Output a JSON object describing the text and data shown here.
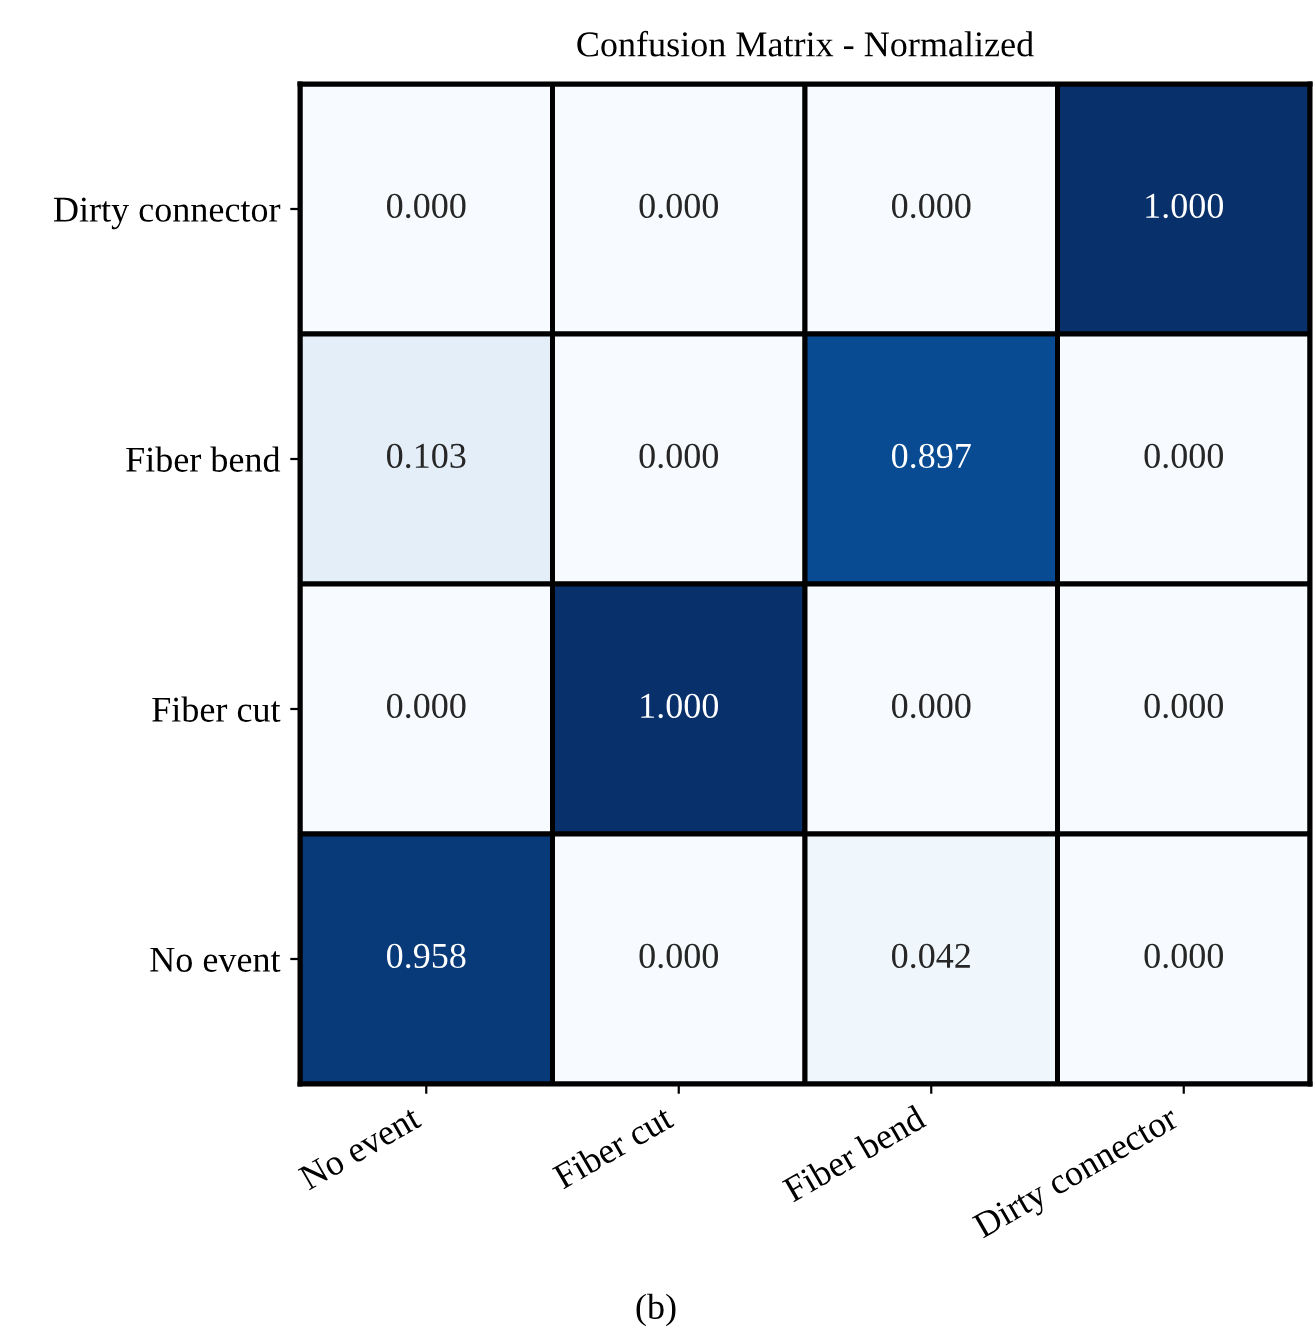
{
  "chart_data": {
    "type": "heatmap",
    "title": "Confusion Matrix - Normalized",
    "categories": [
      "No event",
      "Fiber cut",
      "Fiber bend",
      "Dirty connector"
    ],
    "y_categories": [
      "Dirty connector",
      "Fiber bend",
      "Fiber cut",
      "No event"
    ],
    "cells": [
      [
        0.0,
        0.0,
        0.0,
        1.0
      ],
      [
        0.103,
        0.0,
        0.897,
        0.0
      ],
      [
        0.0,
        1.0,
        0.0,
        0.0
      ],
      [
        0.958,
        0.0,
        0.042,
        0.0
      ]
    ],
    "cell_labels": [
      [
        "0.000",
        "0.000",
        "0.000",
        "1.000"
      ],
      [
        "0.103",
        "0.000",
        "0.897",
        "0.000"
      ],
      [
        "0.000",
        "1.000",
        "0.000",
        "0.000"
      ],
      [
        "0.958",
        "0.000",
        "0.042",
        "0.000"
      ]
    ],
    "annotations": [
      "(b)"
    ]
  }
}
